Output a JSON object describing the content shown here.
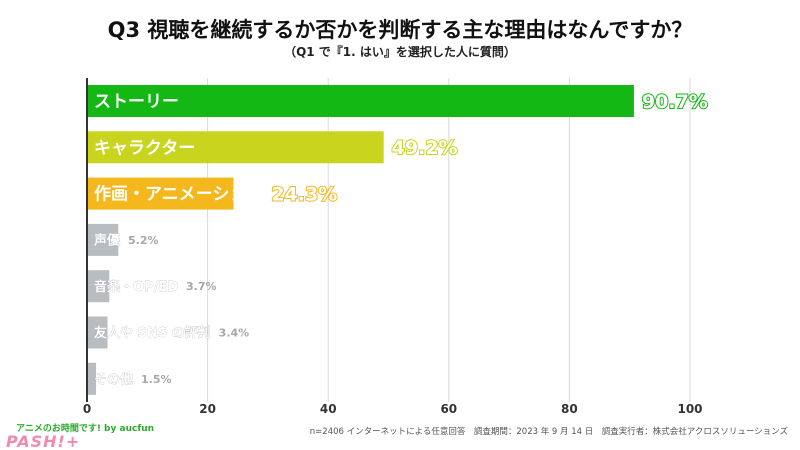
{
  "header": {
    "title": "Q3 視聴を継続するか否かを判断する主な理由はなんですか？",
    "subtitle": "（Q1 で『1. はい』を選択した人に質問）"
  },
  "footer": {
    "credit": "アニメのお時間です! by aucfun",
    "note": "n=2406 インターネットによる任意回答　調査期間：2023 年 9 月 14 日　調査実行者：株式会社アクロスソリューションズ",
    "logo": "PASH!+"
  },
  "colors": {
    "grid": "#d9d9d9",
    "axis": "#333333",
    "muted_label": "#a8a8a8"
  },
  "chart_data": {
    "type": "bar",
    "orientation": "horizontal",
    "title": "Q3 視聴を継続するか否かを判断する主な理由はなんですか？",
    "subtitle": "（Q1 で『1. はい』を選択した人に質問）",
    "xlim": [
      0,
      100
    ],
    "xticks": [
      0,
      20,
      40,
      60,
      80,
      100
    ],
    "grid": true,
    "unit": "%",
    "categories": [
      "ストーリー",
      "キャラクター",
      "作画・アニメーション",
      "声優",
      "音楽・OP/ED",
      "友人や SNS の評判",
      "その他"
    ],
    "values": [
      90.7,
      49.2,
      24.3,
      5.2,
      3.7,
      3.4,
      1.5
    ],
    "bar_colors": [
      "#14b814",
      "#c8d41e",
      "#f5b81c",
      "#b8bdc2",
      "#b8bdc2",
      "#b8bdc2",
      "#b8bdc2"
    ],
    "label_colors": [
      "#14b814",
      "#c8d41e",
      "#f5b81c",
      "#a8a8a8",
      "#a8a8a8",
      "#a8a8a8",
      "#a8a8a8"
    ]
  }
}
